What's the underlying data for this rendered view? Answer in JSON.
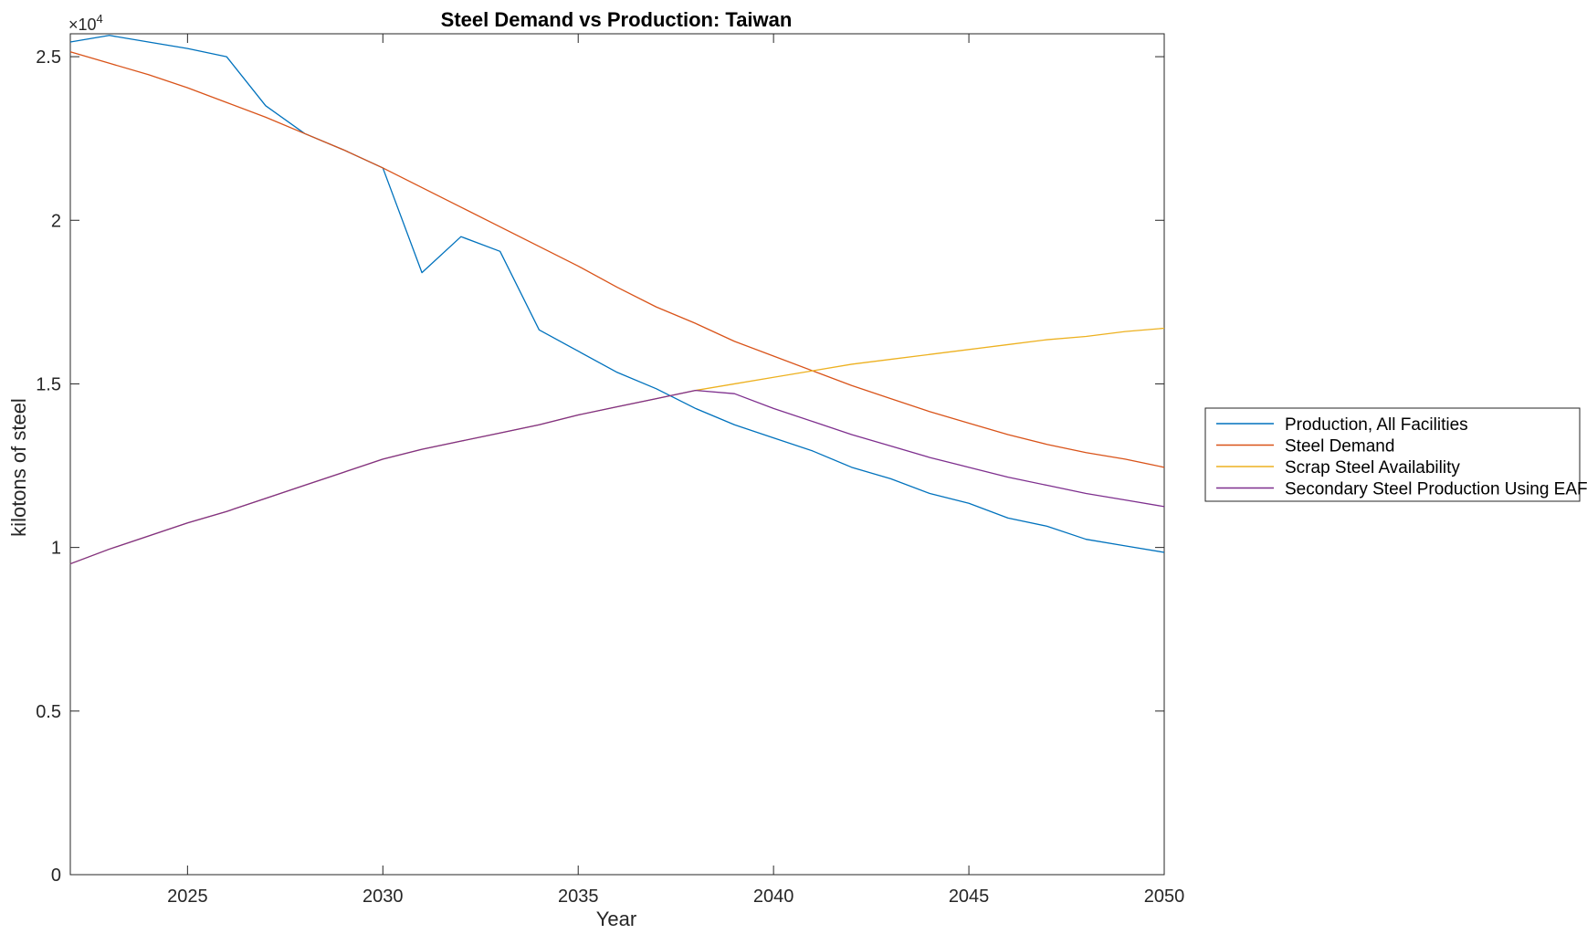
{
  "chart_data": {
    "type": "line",
    "title": "Steel Demand vs Production: Taiwan",
    "xlabel": "Year",
    "ylabel": "kilotons of steel",
    "y_exponent_label": "×10",
    "y_exponent_power": "4",
    "xlim": [
      2022,
      2050
    ],
    "ylim": [
      0,
      25.7
    ],
    "x_ticks": [
      2025,
      2030,
      2035,
      2040,
      2045,
      2050
    ],
    "y_ticks": [
      0,
      5,
      10,
      15,
      20,
      25
    ],
    "y_tick_labels": [
      "0",
      "0.5",
      "1",
      "1.5",
      "2",
      "2.5"
    ],
    "legend_position": "outside-right",
    "grid": false,
    "x": [
      2022,
      2023,
      2024,
      2025,
      2026,
      2027,
      2028,
      2029,
      2030,
      2031,
      2032,
      2033,
      2034,
      2035,
      2036,
      2037,
      2038,
      2039,
      2040,
      2041,
      2042,
      2043,
      2044,
      2045,
      2046,
      2047,
      2048,
      2049,
      2050
    ],
    "series": [
      {
        "name": "Production, All Facilities",
        "color": "#0072BD",
        "values": [
          25.45,
          25.65,
          25.45,
          25.25,
          25.0,
          23.5,
          22.65,
          22.15,
          21.6,
          18.4,
          19.5,
          19.05,
          16.65,
          16.0,
          15.35,
          14.85,
          14.25,
          13.75,
          13.35,
          12.95,
          12.45,
          12.1,
          11.65,
          11.35,
          10.9,
          10.65,
          10.25,
          10.05,
          9.85
        ]
      },
      {
        "name": "Steel Demand",
        "color": "#D95319",
        "values": [
          25.15,
          24.8,
          24.45,
          24.05,
          23.6,
          23.15,
          22.65,
          22.15,
          21.6,
          21.0,
          20.4,
          19.8,
          19.2,
          18.6,
          17.95,
          17.35,
          16.85,
          16.3,
          15.85,
          15.4,
          14.95,
          14.55,
          14.15,
          13.8,
          13.45,
          13.15,
          12.9,
          12.7,
          12.45
        ]
      },
      {
        "name": "Scrap Steel Availability",
        "color": "#EDB120",
        "values": [
          9.5,
          9.95,
          10.35,
          10.75,
          11.1,
          11.5,
          11.9,
          12.3,
          12.7,
          13.0,
          13.25,
          13.5,
          13.75,
          14.05,
          14.3,
          14.55,
          14.8,
          15.0,
          15.2,
          15.4,
          15.6,
          15.75,
          15.9,
          16.05,
          16.2,
          16.35,
          16.45,
          16.6,
          16.7
        ]
      },
      {
        "name": "Secondary Steel Production Using EAF",
        "color": "#7E2F8E",
        "values": [
          9.5,
          9.95,
          10.35,
          10.75,
          11.1,
          11.5,
          11.9,
          12.3,
          12.7,
          13.0,
          13.25,
          13.5,
          13.75,
          14.05,
          14.3,
          14.55,
          14.8,
          14.7,
          14.25,
          13.85,
          13.45,
          13.1,
          12.75,
          12.45,
          12.15,
          11.9,
          11.65,
          11.45,
          11.25
        ]
      }
    ]
  }
}
